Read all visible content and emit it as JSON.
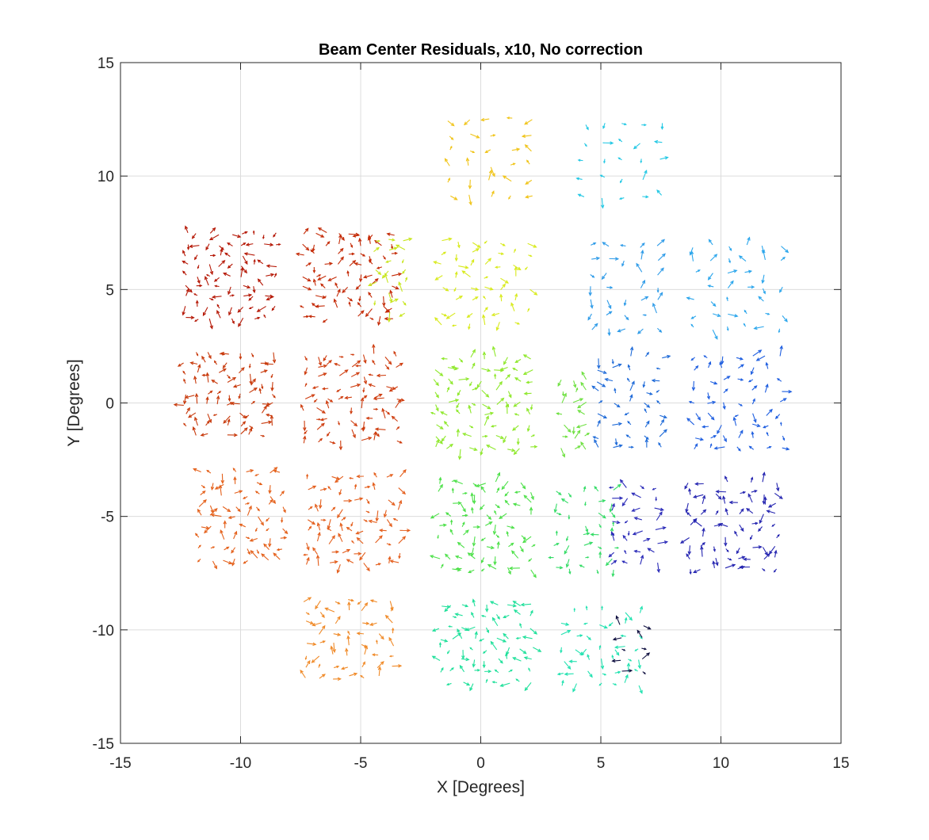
{
  "chart_data": {
    "type": "quiver",
    "title": "Beam Center Residuals, x10, No correction",
    "xlabel": "X [Degrees]",
    "ylabel": "Y [Degrees]",
    "xlim": [
      -15,
      15
    ],
    "ylim": [
      -15,
      15
    ],
    "xticks": [
      -15,
      -10,
      -5,
      0,
      5,
      10,
      15
    ],
    "yticks": [
      -15,
      -10,
      -5,
      0,
      5,
      10,
      15
    ],
    "xtick_labels": [
      "-15",
      "-10",
      "-5",
      "0",
      "5",
      "10",
      "15"
    ],
    "ytick_labels": [
      "-15",
      "-10",
      "-5",
      "0",
      "5",
      "10",
      "15"
    ],
    "grid": true,
    "legend": "none",
    "arrow_scale": 10,
    "colormap": "jet",
    "clusters": [
      {
        "cx": -10.4,
        "cy": 5.6,
        "w": 3.7,
        "h": 3.7,
        "nx": 9,
        "ny": 9,
        "color": "#b51806"
      },
      {
        "cx": -5.5,
        "cy": 5.6,
        "w": 3.7,
        "h": 3.7,
        "nx": 9,
        "ny": 9,
        "color": "#c42a06"
      },
      {
        "cx": -3.8,
        "cy": 5.6,
        "w": 1.2,
        "h": 3.2,
        "nx": 3,
        "ny": 8,
        "color": "#c8e61e"
      },
      {
        "cx": 0.4,
        "cy": 10.8,
        "w": 3.4,
        "h": 3.4,
        "nx": 5,
        "ny": 6,
        "color": "#f0c419"
      },
      {
        "cx": 0.2,
        "cy": 5.3,
        "w": 3.6,
        "h": 3.6,
        "nx": 7,
        "ny": 8,
        "color": "#d8ea1c"
      },
      {
        "cx": 5.9,
        "cy": 10.7,
        "w": 3.2,
        "h": 3.2,
        "nx": 5,
        "ny": 5,
        "color": "#23c8e4"
      },
      {
        "cx": 6.0,
        "cy": 5.1,
        "w": 2.8,
        "h": 3.6,
        "nx": 5,
        "ny": 7,
        "color": "#2e9be8"
      },
      {
        "cx": 10.7,
        "cy": 5.1,
        "w": 3.6,
        "h": 3.6,
        "nx": 6,
        "ny": 7,
        "color": "#2ba6ec"
      },
      {
        "cx": -10.5,
        "cy": 0.4,
        "w": 3.6,
        "h": 3.6,
        "nx": 9,
        "ny": 9,
        "color": "#c83a0c"
      },
      {
        "cx": -5.4,
        "cy": 0.2,
        "w": 3.8,
        "h": 3.8,
        "nx": 9,
        "ny": 9,
        "color": "#ce3c0e"
      },
      {
        "cx": 0.1,
        "cy": 0.0,
        "w": 4.0,
        "h": 4.0,
        "nx": 9,
        "ny": 9,
        "color": "#8ee82a"
      },
      {
        "cx": 3.9,
        "cy": -0.5,
        "w": 1.0,
        "h": 3.0,
        "nx": 3,
        "ny": 7,
        "color": "#6ee040"
      },
      {
        "cx": 6.2,
        "cy": 0.0,
        "w": 2.6,
        "h": 4.0,
        "nx": 5,
        "ny": 9,
        "color": "#1e6ad8"
      },
      {
        "cx": 10.7,
        "cy": 0.0,
        "w": 3.6,
        "h": 4.0,
        "nx": 7,
        "ny": 9,
        "color": "#1e5ee0"
      },
      {
        "cx": -10.0,
        "cy": -5.0,
        "w": 3.4,
        "h": 3.8,
        "nx": 8,
        "ny": 9,
        "color": "#e4601a"
      },
      {
        "cx": -5.3,
        "cy": -5.2,
        "w": 3.8,
        "h": 3.8,
        "nx": 9,
        "ny": 9,
        "color": "#e45e1c"
      },
      {
        "cx": 0.2,
        "cy": -5.4,
        "w": 3.8,
        "h": 3.8,
        "nx": 9,
        "ny": 9,
        "color": "#4ce048"
      },
      {
        "cx": 4.3,
        "cy": -5.6,
        "w": 2.4,
        "h": 3.4,
        "nx": 5,
        "ny": 8,
        "color": "#34dc66"
      },
      {
        "cx": 6.4,
        "cy": -5.4,
        "w": 1.8,
        "h": 3.4,
        "nx": 4,
        "ny": 8,
        "color": "#2a2ab8"
      },
      {
        "cx": 10.5,
        "cy": -5.4,
        "w": 3.6,
        "h": 3.8,
        "nx": 8,
        "ny": 9,
        "color": "#2424b0"
      },
      {
        "cx": -5.5,
        "cy": -10.4,
        "w": 3.6,
        "h": 3.4,
        "nx": 7,
        "ny": 8,
        "color": "#f08a28"
      },
      {
        "cx": 0.2,
        "cy": -10.6,
        "w": 3.8,
        "h": 3.4,
        "nx": 9,
        "ny": 8,
        "color": "#1ee09a"
      },
      {
        "cx": 5.0,
        "cy": -10.8,
        "w": 3.2,
        "h": 3.2,
        "nx": 7,
        "ny": 7,
        "color": "#22e2b0"
      },
      {
        "cx": 6.3,
        "cy": -10.8,
        "w": 0.9,
        "h": 2.0,
        "nx": 2,
        "ny": 5,
        "color": "#101040"
      }
    ]
  }
}
